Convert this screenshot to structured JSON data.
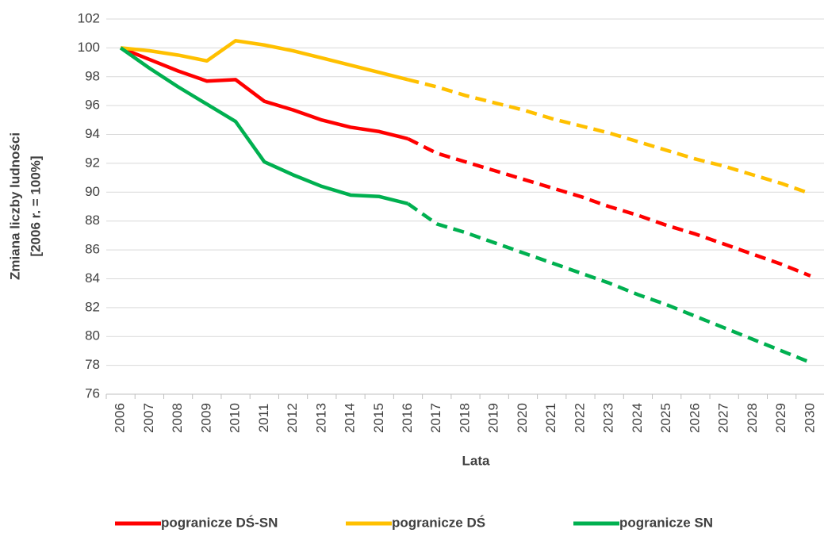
{
  "chart_data": {
    "type": "line",
    "x_label": "Lata",
    "y_label": [
      "Zmiana liczby ludności",
      "[2006 r. = 100%]"
    ],
    "categories": [
      "2006",
      "2007",
      "2008",
      "2009",
      "2010",
      "2011",
      "2012",
      "2013",
      "2014",
      "2015",
      "2016",
      "2017",
      "2018",
      "2019",
      "2020",
      "2021",
      "2022",
      "2023",
      "2024",
      "2025",
      "2026",
      "2027",
      "2028",
      "2029",
      "2030"
    ],
    "forecast_from": "2016",
    "series": [
      {
        "name": "pogranicze DŚ-SN",
        "color": "#ff0000",
        "values": [
          100,
          99.2,
          98.4,
          97.7,
          97.8,
          96.3,
          95.7,
          95.0,
          94.5,
          94.2,
          93.7,
          92.7,
          92.1,
          91.5,
          90.9,
          90.3,
          89.7,
          89.0,
          88.4,
          87.7,
          87.1,
          86.4,
          85.7,
          85.0,
          84.2
        ]
      },
      {
        "name": "pogranicze DŚ",
        "color": "#ffc000",
        "values": [
          100,
          99.8,
          99.5,
          99.1,
          100.5,
          100.2,
          99.8,
          99.3,
          98.8,
          98.3,
          97.8,
          97.3,
          96.7,
          96.2,
          95.7,
          95.1,
          94.6,
          94.1,
          93.5,
          92.9,
          92.3,
          91.8,
          91.2,
          90.6,
          89.9
        ]
      },
      {
        "name": "pogranicze SN",
        "color": "#00b050",
        "values": [
          100,
          98.6,
          97.3,
          96.1,
          94.9,
          92.1,
          91.2,
          90.4,
          89.8,
          89.7,
          89.2,
          87.8,
          87.2,
          86.5,
          85.8,
          85.1,
          84.4,
          83.7,
          82.9,
          82.2,
          81.4,
          80.6,
          79.8,
          79.0,
          78.2
        ]
      }
    ],
    "ylim": [
      76,
      102
    ],
    "yticks": [
      76,
      78,
      80,
      82,
      84,
      86,
      88,
      90,
      92,
      94,
      96,
      98,
      100,
      102
    ],
    "grid": true,
    "legend": "bottom"
  }
}
